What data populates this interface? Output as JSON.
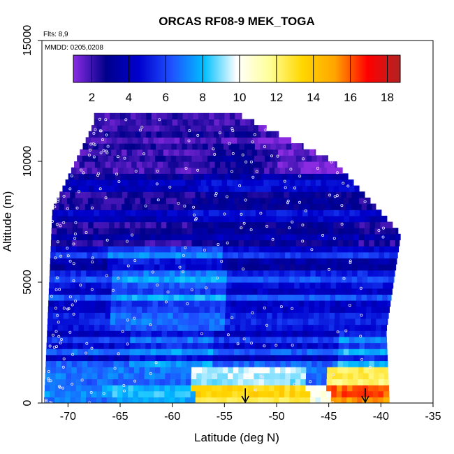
{
  "chart_data": {
    "type": "heatmap",
    "title": "ORCAS RF08-9 MEK_TOGA",
    "xlabel": "Latitude (deg N)",
    "ylabel": "Altitude (m)",
    "annotations": [
      "Flts: 8,9",
      "MMDD: 0205,0208"
    ],
    "xlim": [
      -72.5,
      -35
    ],
    "ylim": [
      0,
      15000
    ],
    "x_ticks": [
      "-70",
      "-65",
      "-60",
      "-55",
      "-50",
      "-45",
      "-40",
      "-35"
    ],
    "x_tick_values": [
      -70,
      -65,
      -60,
      -55,
      -50,
      -45,
      -40,
      -35
    ],
    "y_ticks": [
      "0",
      "5000",
      "10000",
      "15000"
    ],
    "y_tick_values": [
      0,
      5000,
      10000,
      15000
    ],
    "colorbar": {
      "range": [
        1,
        18.7
      ],
      "tick_labels": [
        "2",
        "4",
        "6",
        "8",
        "10",
        "12",
        "14",
        "16",
        "18"
      ],
      "tick_values": [
        2,
        4,
        6,
        8,
        10,
        12,
        14,
        16,
        18
      ],
      "colors": [
        "#8a2be2",
        "#00008b",
        "#0000cd",
        "#1e50ff",
        "#00bfff",
        "#ffffff",
        "#ffff99",
        "#ffd700",
        "#ffa500",
        "#ff0000",
        "#b22222"
      ]
    },
    "arrows_lat": [
      -53,
      -41.5
    ],
    "grid": false,
    "data_summary": {
      "upper_troposphere_10000_12000m": "values about 1-3",
      "mid_troposphere_4000_9000m": "values about 2-7",
      "boundary_layer_0_1500m_lat_-57_to_-48": "values about 8-14",
      "boundary_layer_0_1500m_lat_-44_to_-39": "values about 14-17"
    }
  }
}
